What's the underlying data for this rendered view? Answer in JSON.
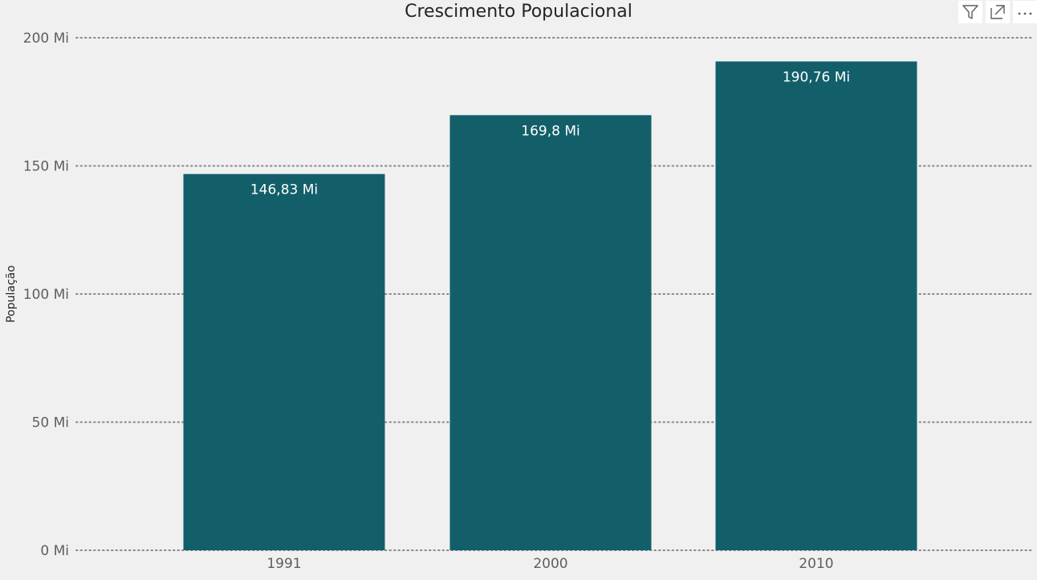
{
  "header": {
    "filter_icon": "filter-icon",
    "focus_icon": "focus-mode-icon",
    "more_icon": "more-options-icon"
  },
  "colors": {
    "bar": "#125f6a",
    "grid": "#8a8886",
    "background": "#f0f0f0"
  },
  "chart_data": {
    "type": "bar",
    "title": "Crescimento Populacional",
    "xlabel": "",
    "ylabel": "População",
    "categories": [
      "1991",
      "2000",
      "2010"
    ],
    "values": [
      146.83,
      169.8,
      190.76
    ],
    "data_labels": [
      "146,83 Mi",
      "169,8 Mi",
      "190,76 Mi"
    ],
    "ylim": [
      0,
      200
    ],
    "yticks": [
      0,
      50,
      100,
      150,
      200
    ],
    "ytick_labels": [
      "0 Mi",
      "50 Mi",
      "100 Mi",
      "150 Mi",
      "200 Mi"
    ],
    "grid": true,
    "grid_style": "dotted",
    "legend": "none"
  }
}
